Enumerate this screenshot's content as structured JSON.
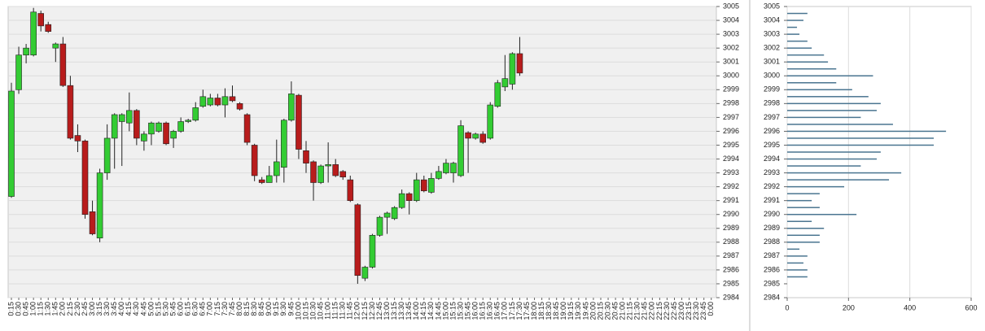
{
  "chart_data": [
    {
      "type": "candlestick",
      "categories": [
        "0:15",
        "0:30",
        "0:45",
        "1:00",
        "1:15",
        "1:30",
        "1:45",
        "2:00",
        "2:15",
        "2:30",
        "2:45",
        "3:00",
        "3:15",
        "3:30",
        "3:45",
        "4:00",
        "4:15",
        "4:30",
        "4:45",
        "5:00",
        "5:15",
        "5:30",
        "5:45",
        "6:00",
        "6:15",
        "6:30",
        "6:45",
        "7:00",
        "7:15",
        "7:30",
        "7:45",
        "8:00",
        "8:15",
        "8:30",
        "8:45",
        "9:00",
        "9:15",
        "9:30",
        "9:45",
        "10:00",
        "10:15",
        "10:30",
        "10:45",
        "11:00",
        "11:15",
        "11:30",
        "11:45",
        "12:00",
        "12:15",
        "12:30",
        "12:45",
        "13:00",
        "13:15",
        "13:30",
        "13:45",
        "14:00",
        "14:15",
        "14:30",
        "14:45",
        "15:00",
        "15:15",
        "15:30",
        "15:45",
        "16:00",
        "16:15",
        "16:30",
        "16:45",
        "17:00",
        "17:15",
        "17:30",
        "17:45",
        "18:00",
        "18:15",
        "18:30",
        "18:45",
        "19:00",
        "19:15",
        "19:30",
        "19:45",
        "20:00",
        "20:15",
        "20:30",
        "20:45",
        "21:00",
        "21:15",
        "21:30",
        "21:45",
        "22:00",
        "22:15",
        "22:30",
        "22:45",
        "23:00",
        "23:15",
        "23:30",
        "23:45",
        "0:00"
      ],
      "open": [
        2991.3,
        2999,
        3001.5,
        3001.5,
        3004.5,
        3003.7,
        3002.0,
        3002.3,
        2999.3,
        2995.7,
        2995.3,
        2990.2,
        2988.3,
        2993,
        2995.5,
        2996.7,
        2996.6,
        2997.5,
        2995.3,
        2995.8,
        2996,
        2996.6,
        2995.5,
        2996,
        2996.7,
        2996.8,
        2997.8,
        2997.9,
        2998.4,
        2997.9,
        2998.5,
        2998,
        2997.2,
        2995,
        2992.5,
        2992.3,
        2992.8,
        2993.4,
        2996.8,
        2998.6,
        2994.6,
        2993.8,
        2992.3,
        2993.5,
        2993.6,
        2993.1,
        2992.5,
        2990.7,
        2985.4,
        2986.2,
        2988.5,
        2989.8,
        2989.7,
        2990.5,
        2991.5,
        2991,
        2992.5,
        2991.6,
        2992.6,
        2993,
        2993,
        2992.8,
        2995.9,
        2995.5,
        2995.8,
        2995.5,
        2997.8,
        2999.2,
        2999.4,
        3001.6,
        null,
        null,
        null,
        null,
        null,
        null,
        null,
        null,
        null,
        null,
        null,
        null,
        null,
        null,
        null,
        null,
        null,
        null,
        null,
        null,
        null,
        null,
        null,
        null,
        null,
        null
      ],
      "high": [
        2999.5,
        3002.1,
        3002.3,
        3004.9,
        3004.7,
        3003.9,
        3002.4,
        3002.8,
        3000,
        2996.5,
        2995.4,
        2991,
        2993.3,
        2996.5,
        2997.3,
        2997.3,
        2998.8,
        2997.6,
        2996,
        2996.7,
        2996.7,
        2996.7,
        2996.1,
        2997,
        2996.9,
        2998.1,
        2999,
        2998.7,
        2998.7,
        2999.1,
        2999.3,
        2998.1,
        2997.3,
        2995.1,
        2992.7,
        2993.5,
        2995.4,
        2996.9,
        2999.6,
        2998.7,
        2995.3,
        2993.9,
        2993.6,
        2995.2,
        2994,
        2993.2,
        2992.8,
        2990.8,
        2986.3,
        2988.6,
        2989.9,
        2990.2,
        2990.6,
        2991.8,
        2991.6,
        2993,
        2992.8,
        2993,
        2993.5,
        2994,
        2993.8,
        2996.8,
        2996,
        2995.9,
        2996,
        2998.1,
        2999.7,
        3001.5,
        3001.7,
        3002.8,
        null,
        null,
        null,
        null,
        null,
        null,
        null,
        null,
        null,
        null,
        null,
        null,
        null,
        null,
        null,
        null,
        null,
        null,
        null,
        null,
        null,
        null,
        null,
        null,
        null,
        null
      ],
      "low": [
        2991.2,
        2998.7,
        3000.9,
        3001.4,
        3003.2,
        3003.1,
        3001,
        2999.2,
        2995.4,
        2994.5,
        2989.7,
        2988.5,
        2988,
        2992.5,
        2993.3,
        2993.5,
        2996,
        2995,
        2994.6,
        2995,
        2995.9,
        2995,
        2994.8,
        2995.9,
        2996.6,
        2996.7,
        2997.7,
        2997.8,
        2997.8,
        2997,
        2998.1,
        2997.5,
        2995,
        2992.4,
        2992.2,
        2992.3,
        2992.3,
        2992.3,
        2996.7,
        2994,
        2993,
        2991,
        2992.2,
        2992.3,
        2992.7,
        2992.5,
        2990.9,
        2985,
        2985.2,
        2986.1,
        2988.4,
        2988.6,
        2989.6,
        2990.4,
        2990,
        2990.9,
        2991.6,
        2991.5,
        2992.5,
        2992.9,
        2992.3,
        2992.7,
        2993,
        2995.4,
        2995.1,
        2995.4,
        2997.7,
        2998.9,
        2999,
        3000,
        null,
        null,
        null,
        null,
        null,
        null,
        null,
        null,
        null,
        null,
        null,
        null,
        null,
        null,
        null,
        null,
        null,
        null,
        null,
        null,
        null,
        null,
        null,
        null,
        null,
        null
      ],
      "close": [
        2998.9,
        3001.5,
        3002.0,
        3004.6,
        3003.6,
        3003.2,
        3002.3,
        2999.3,
        2995.5,
        2995.3,
        2990.0,
        2988.6,
        2993,
        2995.5,
        2997.2,
        2997.2,
        2997.5,
        2995.5,
        2995.8,
        2996.6,
        2996.6,
        2995.1,
        2996,
        2996.7,
        2996.8,
        2997.7,
        2998.5,
        2998.4,
        2997.9,
        2998.5,
        2998.2,
        2997.6,
        2995.2,
        2992.8,
        2992.3,
        2992.8,
        2993.8,
        2996.8,
        2998.7,
        2994.7,
        2993.7,
        2992.3,
        2993.5,
        2993.6,
        2992.8,
        2992.7,
        2991,
        2985.6,
        2986.2,
        2988.5,
        2989.8,
        2990.1,
        2990.5,
        2991.5,
        2991,
        2992.5,
        2991.7,
        2992.6,
        2993.1,
        2993.7,
        2993.7,
        2996.4,
        2995.5,
        2995.8,
        2995.2,
        2997.9,
        2999.5,
        2999.8,
        3001.6,
        3000.2,
        null,
        null,
        null,
        null,
        null,
        null,
        null,
        null,
        null,
        null,
        null,
        null,
        null,
        null,
        null,
        null,
        null,
        null,
        null,
        null,
        null,
        null,
        null,
        null,
        null,
        null
      ],
      "up_color": "#33cc33",
      "down_color": "#b81c1c",
      "ylim": [
        2984,
        3005
      ],
      "yticks": [
        2984,
        2985,
        2986,
        2987,
        2988,
        2989,
        2990,
        2991,
        2992,
        2993,
        2994,
        2995,
        2996,
        2997,
        2998,
        2999,
        3000,
        3001,
        3002,
        3003,
        3004,
        3005
      ],
      "grid": true
    },
    {
      "type": "bar",
      "orientation": "horizontal",
      "y": [
        3004.5,
        3004,
        3003.5,
        3003,
        3002.5,
        3002,
        3001.5,
        3001,
        3000.5,
        3000,
        2999.5,
        2999,
        2998.5,
        2998,
        2997.5,
        2997,
        2996.5,
        2996,
        2995.5,
        2995,
        2994.5,
        2994,
        2993.5,
        2993,
        2992.5,
        2992,
        2991.5,
        2991,
        2990.5,
        2990,
        2989.5,
        2989,
        2988.5,
        2988,
        2987.5,
        2987,
        2986.5,
        2986,
        2985.5
      ],
      "values": [
        66,
        53,
        32,
        40,
        66,
        80,
        120,
        133,
        160,
        280,
        160,
        212,
        265,
        305,
        292,
        240,
        345,
        518,
        478,
        478,
        305,
        292,
        240,
        372,
        332,
        186,
        106,
        80,
        106,
        226,
        80,
        120,
        106,
        106,
        40,
        66,
        53,
        66,
        66
      ],
      "color": "#4a7590",
      "xlim": [
        0,
        600
      ],
      "xticks": [
        0,
        200,
        400,
        600
      ],
      "ylim": [
        2984,
        3005
      ],
      "yticks": [
        2984,
        2985,
        2986,
        2987,
        2988,
        2989,
        2990,
        2991,
        2992,
        2993,
        2994,
        2995,
        2996,
        2997,
        2998,
        2999,
        3000,
        3001,
        3002,
        3003,
        3004,
        3005
      ],
      "grid": true
    }
  ]
}
